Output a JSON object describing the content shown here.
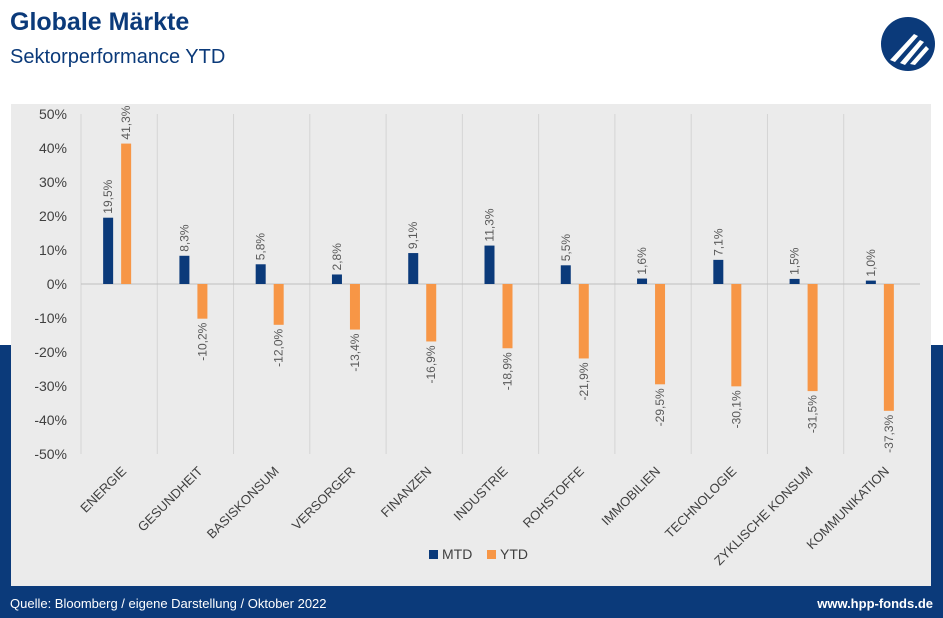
{
  "header": {
    "title": "Globale Märkte",
    "subtitle": "Sektorperformance YTD"
  },
  "logo": {
    "icon": "hpp-logo-icon",
    "color": "#0b3a7a"
  },
  "footer": {
    "source": "Quelle: Bloomberg / eigene Darstellung / Oktober 2022",
    "website": "www.hpp-fonds.de"
  },
  "colors": {
    "navy": "#0b3a7a",
    "mtd": "#0b3a7a",
    "ytd": "#f79646",
    "panel": "#ebebeb"
  },
  "chart_data": {
    "type": "bar",
    "categories": [
      "ENERGIE",
      "GESUNDHEIT",
      "BASISKONSUM",
      "VERSORGER",
      "FINANZEN",
      "INDUSTRIE",
      "ROHSTOFFE",
      "IMMOBILIEN",
      "TECHNOLOGIE",
      "ZYKLISCHE KONSUM",
      "KOMMUNIKATION"
    ],
    "series": [
      {
        "name": "MTD",
        "values": [
          19.5,
          8.3,
          5.8,
          2.8,
          9.1,
          11.3,
          5.5,
          1.6,
          7.1,
          1.5,
          1.0
        ],
        "labels": [
          "19,5%",
          "8,3%",
          "5,8%",
          "2,8%",
          "9,1%",
          "11,3%",
          "5,5%",
          "1,6%",
          "7,1%",
          "1,5%",
          "1,0%"
        ]
      },
      {
        "name": "YTD",
        "values": [
          41.3,
          -10.2,
          -12.0,
          -13.4,
          -16.9,
          -18.9,
          -21.9,
          -29.5,
          -30.1,
          -31.5,
          -37.3
        ],
        "labels": [
          "41,3%",
          "-10,2%",
          "-12,0%",
          "-13,4%",
          "-16,9%",
          "-18,9%",
          "-21,9%",
          "-29,5%",
          "-30,1%",
          "-31,5%",
          "-37,3%"
        ]
      }
    ],
    "ylim": [
      -50,
      50
    ],
    "yticks": [
      50,
      40,
      30,
      20,
      10,
      0,
      -10,
      -20,
      -30,
      -40,
      -50
    ],
    "ytick_labels": [
      "50%",
      "40%",
      "30%",
      "20%",
      "10%",
      "0%",
      "-10%",
      "-20%",
      "-30%",
      "-40%",
      "-50%"
    ],
    "grid": "vertical separators between categories",
    "legend": "bottom-center"
  }
}
